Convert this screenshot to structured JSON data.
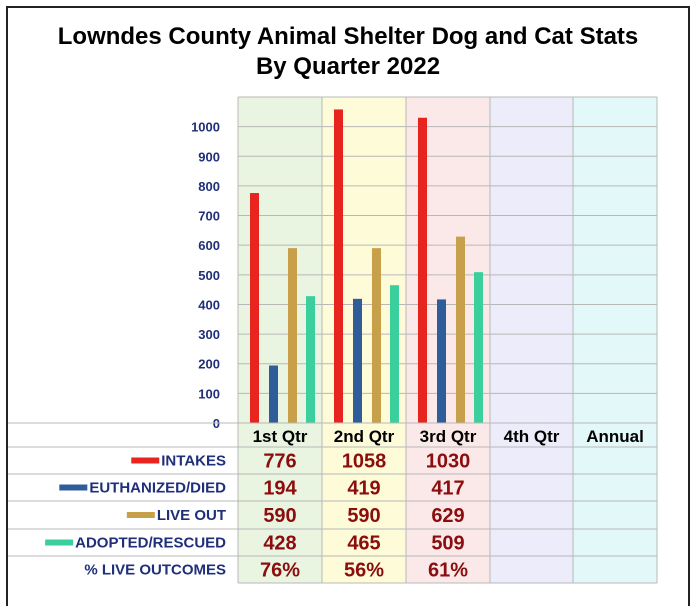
{
  "title_line1": "Lowndes County Animal Shelter Dog and Cat Stats",
  "title_line2": "By Quarter 2022",
  "colors": {
    "intakes": "#e8241f",
    "euthanized": "#2f5d99",
    "live_out": "#c8a04a",
    "adopted": "#3ccf9e",
    "value_text": "#8b0d0d",
    "axis_text": "#1f2f7a",
    "col_bg": [
      "#e9f4e1",
      "#fdfbd8",
      "#fbe9e9",
      "#ececfb",
      "#e3f8f8"
    ]
  },
  "chart_data": {
    "type": "bar",
    "title": "Lowndes County Animal Shelter Dog and Cat Stats By Quarter 2022",
    "categories": [
      "1st Qtr",
      "2nd Qtr",
      "3rd Qtr",
      "4th Qtr",
      "Annual"
    ],
    "yticks": [
      "0",
      "100",
      "200",
      "300",
      "400",
      "500",
      "600",
      "700",
      "800",
      "900",
      "1000"
    ],
    "ylim": [
      0,
      1100
    ],
    "grid": true,
    "series": [
      {
        "name": "INTAKES",
        "color": "#e8241f",
        "values": [
          776,
          1058,
          1030,
          null,
          null
        ],
        "labels": [
          "776",
          "1058",
          "1030",
          "",
          ""
        ]
      },
      {
        "name": "EUTHANIZED/DIED",
        "color": "#2f5d99",
        "values": [
          194,
          419,
          417,
          null,
          null
        ],
        "labels": [
          "194",
          "419",
          "417",
          "",
          ""
        ]
      },
      {
        "name": "LIVE OUT",
        "color": "#c8a04a",
        "values": [
          590,
          590,
          629,
          null,
          null
        ],
        "labels": [
          "590",
          "590",
          "629",
          "",
          ""
        ]
      },
      {
        "name": "ADOPTED/RESCUED",
        "color": "#3ccf9e",
        "values": [
          428,
          465,
          509,
          null,
          null
        ],
        "labels": [
          "428",
          "465",
          "509",
          "",
          ""
        ]
      }
    ],
    "live_outcomes": {
      "name": "% LIVE OUTCOMES",
      "values": [
        "76%",
        "56%",
        "61%",
        "",
        ""
      ]
    }
  }
}
